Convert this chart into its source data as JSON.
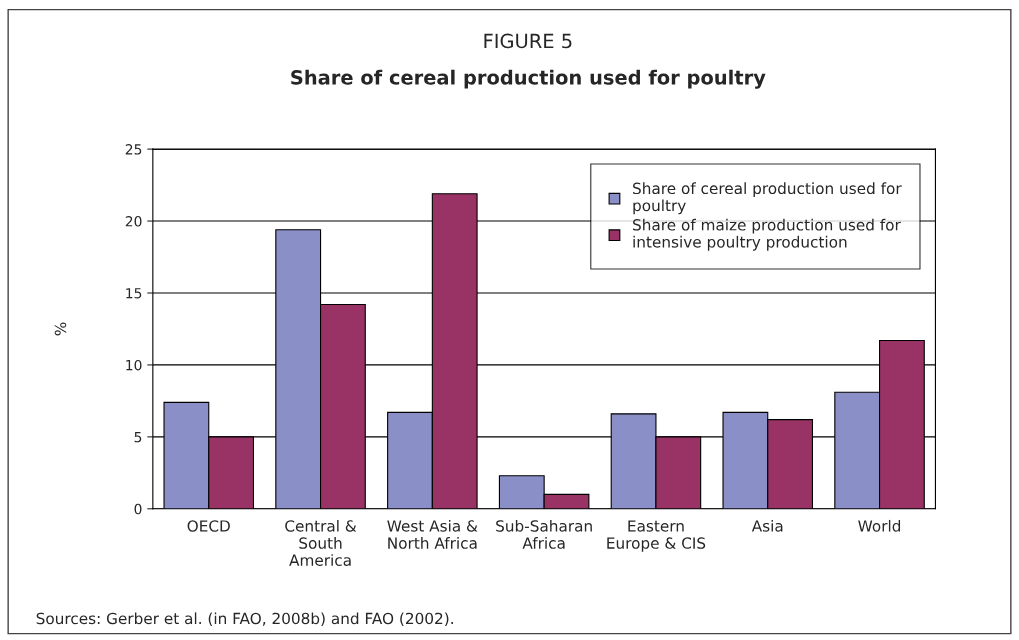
{
  "chart_data": {
    "type": "bar",
    "title": "FIGURE 5",
    "subtitle": "Share of cereal production used for poultry",
    "ylabel": "%",
    "categories": [
      "OECD",
      "Central &\nSouth\nAmerica",
      "West Asia &\nNorth Africa",
      "Sub-Saharan\nAfrica",
      "Eastern\nEurope & CIS",
      "Asia",
      "World"
    ],
    "series": [
      {
        "name": "Share of cereal production used for\npoultry",
        "color": "#8b8fc8",
        "values": [
          7.4,
          19.4,
          6.7,
          2.3,
          6.6,
          6.7,
          8.1
        ]
      },
      {
        "name": "Share of maize production used for\nintensive poultry production",
        "color": "#993366",
        "values": [
          5.0,
          14.2,
          21.9,
          1.0,
          5.0,
          6.2,
          11.7
        ]
      }
    ],
    "ylim": [
      0,
      25
    ],
    "yticks": [
      0,
      5,
      10,
      15,
      20,
      25
    ],
    "grid": "y",
    "legend": "top right",
    "annotations": [
      "Sources: Gerber et al. (in FAO, 2008b) and FAO (2002)."
    ]
  }
}
